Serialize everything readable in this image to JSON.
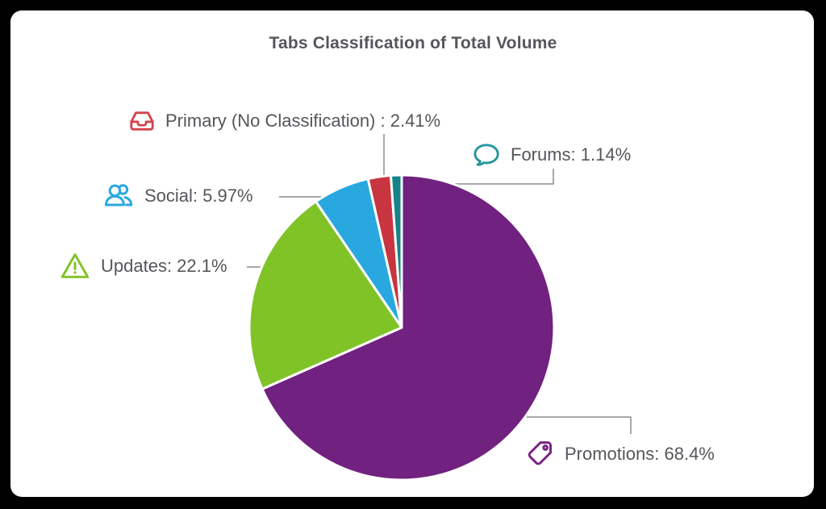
{
  "window": {
    "background": "#000000",
    "card_background": "#ffffff"
  },
  "title": "Tabs Classification of Total Volume",
  "text_color": "#55565b",
  "leader_line_color": "#8c8c8c",
  "chart_data": {
    "type": "pie",
    "title": "Tabs Classification of Total Volume",
    "unit": "%",
    "total": 100,
    "direction": "clockwise",
    "start_angle_deg": 0,
    "legend_position": "around-chart-with-leader-lines",
    "separator": {
      "color": "#ffffff",
      "width": 3
    },
    "slices": [
      {
        "label": "Promotions",
        "value": 68.4,
        "display": "Promotions: 68.4%",
        "color": "#71217f",
        "icon": "tag-icon",
        "icon_color": "#7b2484"
      },
      {
        "label": "Updates",
        "value": 22.1,
        "display": "Updates: 22.1%",
        "color": "#80c327",
        "icon": "warning-triangle-icon",
        "icon_color": "#80c327"
      },
      {
        "label": "Social",
        "value": 5.97,
        "display": "Social: 5.97%",
        "color": "#29a8e0",
        "icon": "users-icon",
        "icon_color": "#29a8e0"
      },
      {
        "label": "Primary (No Classification)",
        "value": 2.41,
        "display": "Primary (No Classification) : 2.41%",
        "color": "#c83540",
        "icon": "inbox-icon",
        "icon_color": "#d2444b"
      },
      {
        "label": "Forums",
        "value": 1.14,
        "display": "Forums: 1.14%",
        "color": "#16828a",
        "icon": "speech-bubble-icon",
        "icon_color": "#25959c"
      }
    ]
  }
}
